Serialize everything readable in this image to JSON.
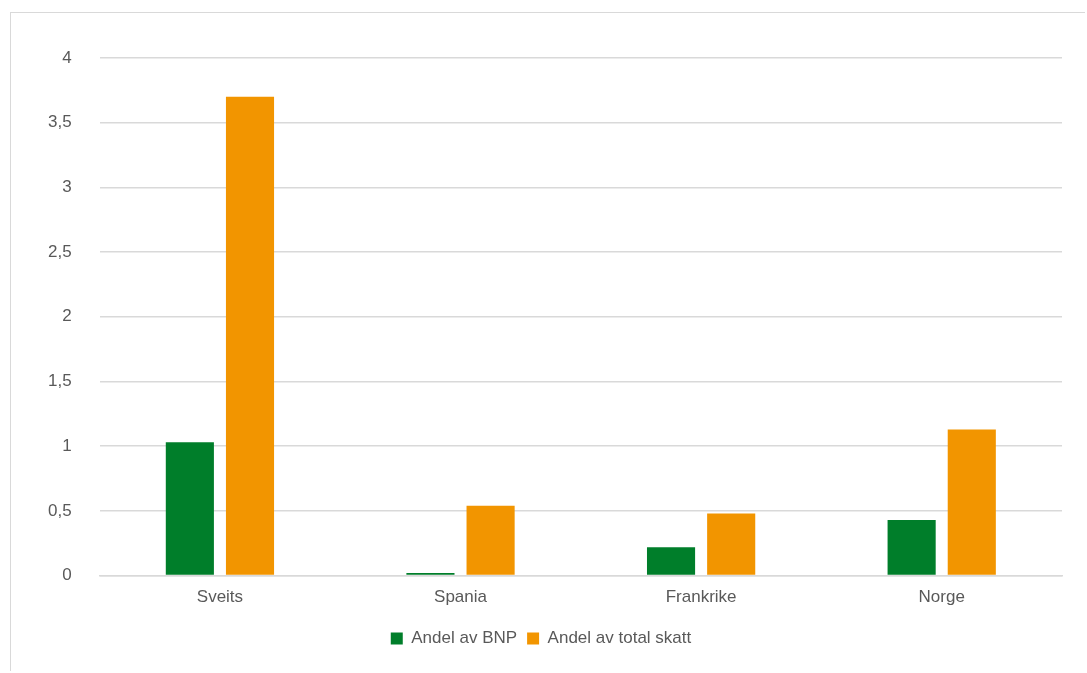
{
  "chart_data": {
    "type": "bar",
    "categories": [
      "Sveits",
      "Spania",
      "Frankrike",
      "Norge"
    ],
    "series": [
      {
        "name": "Andel av BNP",
        "color": "#007e2a",
        "values": [
          1.03,
          0.02,
          0.22,
          0.43
        ]
      },
      {
        "name": "Andel av total skatt",
        "color": "#f29500",
        "values": [
          3.7,
          0.54,
          0.48,
          1.13
        ]
      }
    ],
    "ylim": [
      0,
      4
    ],
    "yticks": [
      0,
      {
        "value": 0.5,
        "label": "0,5"
      },
      1,
      {
        "value": 1.5,
        "label": "1,5"
      },
      2,
      {
        "value": 2.5,
        "label": "2,5"
      },
      3,
      {
        "value": 3.5,
        "label": "3,5"
      },
      4
    ],
    "grid": "y",
    "legend": "bottom"
  }
}
